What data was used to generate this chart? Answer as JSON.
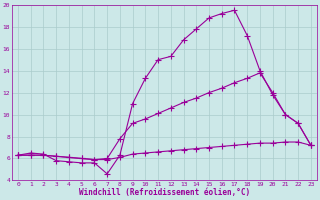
{
  "xlabel": "Windchill (Refroidissement éolien,°C)",
  "bg_color": "#cce8e8",
  "line_color": "#990099",
  "grid_color": "#aacccc",
  "xlim": [
    -0.5,
    23.5
  ],
  "ylim": [
    4,
    20
  ],
  "xticks": [
    0,
    1,
    2,
    3,
    4,
    5,
    6,
    7,
    8,
    9,
    10,
    11,
    12,
    13,
    14,
    15,
    16,
    17,
    18,
    19,
    20,
    21,
    22,
    23
  ],
  "yticks": [
    4,
    6,
    8,
    10,
    12,
    14,
    16,
    18,
    20
  ],
  "line1_x": [
    0,
    1,
    2,
    3,
    4,
    5,
    6,
    7,
    8,
    9,
    10,
    11,
    12,
    13,
    14,
    15,
    16,
    17,
    18,
    19,
    20,
    21,
    22,
    23
  ],
  "line1_y": [
    6.3,
    6.5,
    6.4,
    5.8,
    5.7,
    5.6,
    5.6,
    4.6,
    6.3,
    11.0,
    13.3,
    15.0,
    15.3,
    16.8,
    17.8,
    18.8,
    19.2,
    19.5,
    17.2,
    14.0,
    11.8,
    10.0,
    9.2,
    7.2
  ],
  "line2_x": [
    0,
    1,
    2,
    3,
    4,
    5,
    6,
    7,
    8,
    9,
    10,
    11,
    12,
    13,
    14,
    15,
    16,
    17,
    18,
    19,
    20,
    21,
    22,
    23
  ],
  "line2_y": [
    6.3,
    6.3,
    6.3,
    6.2,
    6.1,
    6.0,
    5.9,
    6.0,
    7.8,
    9.2,
    9.6,
    10.1,
    10.6,
    11.1,
    11.5,
    12.0,
    12.4,
    12.9,
    13.3,
    13.8,
    12.0,
    10.0,
    9.2,
    7.2
  ],
  "line3_x": [
    0,
    1,
    2,
    3,
    4,
    5,
    6,
    7,
    8,
    9,
    10,
    11,
    12,
    13,
    14,
    15,
    16,
    17,
    18,
    19,
    20,
    21,
    22,
    23
  ],
  "line3_y": [
    6.3,
    6.3,
    6.3,
    6.2,
    6.1,
    6.0,
    5.9,
    5.9,
    6.1,
    6.4,
    6.5,
    6.6,
    6.7,
    6.8,
    6.9,
    7.0,
    7.1,
    7.2,
    7.3,
    7.4,
    7.4,
    7.5,
    7.5,
    7.2
  ]
}
